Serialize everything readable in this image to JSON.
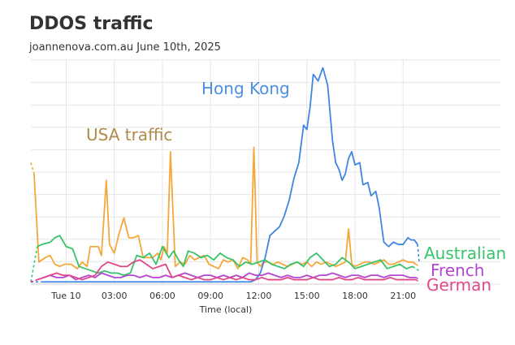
{
  "title": "DDOS traffic",
  "subtitle": "joannenova.com.au June 10th, 2025",
  "chart_data": {
    "type": "line",
    "title": "DDOS traffic",
    "subtitle": "joannenova.com.au June 10th, 2025",
    "xlabel": "Time (local)",
    "ylabel": "",
    "x_tick_labels": [
      "Tue 10",
      "03:00",
      "06:00",
      "09:00",
      "12:00",
      "15:00",
      "18:00",
      "21:00"
    ],
    "x_tick_hours": [
      0,
      3,
      6,
      9,
      12,
      15,
      18,
      21
    ],
    "xlim": [
      -2.2,
      22
    ],
    "ylim": [
      0,
      100
    ],
    "y_tick_labels": [],
    "grid": true,
    "annotations": [
      {
        "text": "Hong Kong",
        "series": "Hong Kong",
        "color": "#4a90e2"
      },
      {
        "text": "USA traffic",
        "series": "USA traffic",
        "color": "#b08a4b"
      }
    ],
    "series": [
      {
        "name": "USA traffic",
        "color": "#f5a73a",
        "x": [
          -2.2,
          -2.0,
          -1.7,
          -1.3,
          -1.0,
          -0.7,
          -0.4,
          -0.1,
          0.3,
          0.7,
          1.0,
          1.3,
          1.5,
          1.8,
          2.0,
          2.2,
          2.5,
          2.7,
          3.0,
          3.3,
          3.6,
          3.9,
          4.2,
          4.5,
          4.8,
          5.1,
          5.4,
          5.7,
          5.9,
          6.1,
          6.3,
          6.5,
          6.8,
          7.1,
          7.4,
          7.7,
          8.0,
          8.3,
          8.6,
          8.9,
          9.2,
          9.5,
          9.8,
          10.1,
          10.4,
          10.7,
          11.0,
          11.3,
          11.5,
          11.7,
          11.9,
          12.1,
          12.3,
          12.6,
          12.9,
          13.2,
          13.5,
          13.8,
          14.1,
          14.4,
          14.7,
          15.0,
          15.3,
          15.6,
          15.9,
          16.2,
          16.5,
          16.8,
          17.1,
          17.4,
          17.6,
          17.8,
          18.0,
          18.3,
          18.6,
          18.9,
          19.2,
          19.5,
          19.8,
          20.1,
          20.4,
          20.7,
          21.0,
          21.3,
          21.6,
          21.8,
          22.0
        ],
        "values": [
          55,
          50,
          10,
          12,
          13,
          9,
          8,
          9,
          9,
          7,
          10,
          8,
          17,
          17,
          17,
          13,
          47,
          18,
          14,
          23,
          30,
          21,
          21,
          22,
          12,
          12,
          12,
          14,
          11,
          17,
          14,
          60,
          8,
          10,
          9,
          13,
          11,
          12,
          13,
          9,
          8,
          7,
          11,
          10,
          11,
          7,
          12,
          11,
          9,
          62,
          10,
          8,
          10,
          10,
          9,
          10,
          9,
          8,
          9,
          10,
          9,
          10,
          8,
          10,
          9,
          10,
          9,
          8,
          9,
          10,
          25,
          9,
          8,
          9,
          10,
          10,
          9,
          10,
          11,
          9,
          9,
          10,
          11,
          10,
          10,
          9,
          8
        ]
      },
      {
        "name": "Hong Kong",
        "color": "#3f86e0",
        "x": [
          -2.2,
          -1.5,
          -1.0,
          -0.5,
          0.0,
          0.5,
          1.0,
          1.5,
          2.0,
          2.5,
          3.0,
          3.5,
          4.0,
          4.5,
          5.0,
          5.5,
          6.0,
          6.5,
          7.0,
          7.5,
          8.0,
          8.5,
          9.0,
          9.5,
          10.0,
          10.5,
          11.0,
          11.5,
          11.8,
          12.1,
          12.4,
          12.7,
          13.0,
          13.3,
          13.6,
          13.9,
          14.2,
          14.5,
          14.8,
          15.0,
          15.2,
          15.4,
          15.7,
          16.0,
          16.3,
          16.6,
          16.8,
          17.0,
          17.2,
          17.4,
          17.6,
          17.8,
          18.0,
          18.3,
          18.5,
          18.8,
          19.0,
          19.3,
          19.5,
          19.8,
          20.1,
          20.4,
          20.7,
          21.0,
          21.3,
          21.5,
          21.7,
          21.9,
          22.0
        ],
        "values": [
          1,
          1,
          1,
          1,
          1,
          1,
          1,
          1,
          1,
          1,
          1,
          1,
          1,
          1,
          1,
          1,
          1,
          1,
          1,
          1,
          1,
          1,
          1,
          1,
          1,
          1,
          1,
          1,
          2,
          5,
          12,
          22,
          24,
          26,
          31,
          38,
          48,
          55,
          72,
          70,
          80,
          95,
          92,
          98,
          90,
          65,
          55,
          52,
          47,
          50,
          57,
          60,
          54,
          55,
          45,
          46,
          40,
          42,
          35,
          19,
          17,
          19,
          18,
          18,
          21,
          20,
          20,
          18,
          10
        ]
      },
      {
        "name": "Australian",
        "color": "#37c46b",
        "x": [
          -2.2,
          -1.8,
          -1.5,
          -1.0,
          -0.7,
          -0.4,
          0.0,
          0.4,
          0.8,
          1.2,
          1.6,
          2.0,
          2.4,
          2.8,
          3.2,
          3.6,
          4.0,
          4.4,
          4.8,
          5.2,
          5.6,
          6.0,
          6.4,
          6.7,
          7.0,
          7.3,
          7.6,
          8.0,
          8.4,
          8.8,
          9.2,
          9.6,
          10.0,
          10.4,
          10.8,
          11.2,
          11.6,
          12.0,
          12.4,
          12.8,
          13.2,
          13.6,
          14.0,
          14.4,
          14.8,
          15.2,
          15.6,
          16.0,
          16.4,
          16.8,
          17.2,
          17.6,
          18.0,
          18.4,
          18.8,
          19.2,
          19.6,
          20.0,
          20.4,
          20.8,
          21.2,
          21.6,
          22.0
        ],
        "values": [
          1,
          17,
          18,
          19,
          21,
          22,
          17,
          16,
          8,
          7,
          6,
          5,
          6,
          5,
          5,
          4,
          5,
          13,
          12,
          14,
          9,
          17,
          12,
          15,
          11,
          8,
          15,
          14,
          12,
          13,
          11,
          14,
          12,
          11,
          8,
          10,
          9,
          10,
          11,
          9,
          8,
          7,
          9,
          10,
          8,
          12,
          14,
          11,
          8,
          9,
          12,
          10,
          7,
          8,
          9,
          10,
          11,
          7,
          8,
          9,
          7,
          8,
          6
        ]
      },
      {
        "name": "French",
        "color": "#b347d1",
        "x": [
          -2.2,
          -1.8,
          -1.4,
          -1.0,
          -0.6,
          -0.2,
          0.2,
          0.6,
          1.0,
          1.4,
          1.8,
          2.2,
          2.6,
          3.0,
          3.4,
          3.8,
          4.2,
          4.6,
          5.0,
          5.4,
          5.8,
          6.2,
          6.6,
          7.0,
          7.4,
          7.8,
          8.2,
          8.6,
          9.0,
          9.4,
          9.8,
          10.2,
          10.6,
          11.0,
          11.4,
          11.8,
          12.2,
          12.6,
          13.0,
          13.4,
          13.8,
          14.2,
          14.6,
          15.0,
          15.4,
          15.8,
          16.2,
          16.6,
          17.0,
          17.4,
          17.8,
          18.2,
          18.6,
          19.0,
          19.4,
          19.8,
          20.2,
          20.6,
          21.0,
          21.4,
          21.8,
          22.0
        ],
        "values": [
          1,
          2,
          3,
          4,
          3,
          3,
          4,
          2,
          3,
          4,
          3,
          5,
          4,
          3,
          3,
          4,
          4,
          3,
          4,
          3,
          3,
          4,
          3,
          4,
          5,
          4,
          3,
          4,
          4,
          3,
          4,
          3,
          4,
          3,
          5,
          4,
          4,
          5,
          4,
          3,
          4,
          3,
          3,
          4,
          3,
          4,
          4,
          5,
          4,
          3,
          4,
          4,
          3,
          4,
          4,
          3,
          4,
          4,
          4,
          3,
          3,
          2
        ]
      },
      {
        "name": "German",
        "color": "#e0488a",
        "x": [
          -2.2,
          -1.8,
          -1.4,
          -1.0,
          -0.6,
          -0.2,
          0.2,
          0.6,
          1.0,
          1.4,
          1.8,
          2.2,
          2.6,
          3.0,
          3.4,
          3.8,
          4.2,
          4.6,
          5.0,
          5.4,
          5.8,
          6.2,
          6.6,
          7.0,
          7.4,
          7.8,
          8.2,
          8.6,
          9.0,
          9.4,
          9.8,
          10.2,
          10.6,
          11.0,
          11.4,
          11.8,
          12.2,
          12.6,
          13.0,
          13.4,
          13.8,
          14.2,
          14.6,
          15.0,
          15.4,
          15.8,
          16.2,
          16.6,
          17.0,
          17.4,
          17.8,
          18.2,
          18.6,
          19.0,
          19.4,
          19.8,
          20.2,
          20.6,
          21.0,
          21.4,
          21.8,
          22.0
        ],
        "values": [
          1,
          2,
          3,
          4,
          5,
          4,
          4,
          3,
          2,
          3,
          4,
          8,
          10,
          9,
          8,
          8,
          10,
          11,
          9,
          7,
          8,
          9,
          3,
          4,
          3,
          2,
          3,
          2,
          2,
          3,
          2,
          3,
          2,
          3,
          2,
          2,
          3,
          2,
          2,
          2,
          3,
          2,
          2,
          2,
          3,
          2,
          2,
          2,
          3,
          2,
          2,
          3,
          2,
          2,
          2,
          2,
          3,
          2,
          2,
          2,
          2,
          1
        ]
      }
    ],
    "legend": [
      "Australian",
      "French",
      "German"
    ],
    "legend_position": "right"
  }
}
